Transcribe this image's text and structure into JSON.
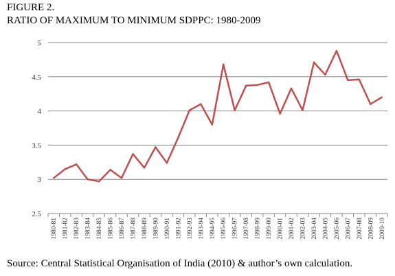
{
  "figure_label": "FIGURE 2.",
  "figure_title": "RATIO OF MAXIMUM TO MINIMUM SDPPC: 1980-2009",
  "source_note": "Source: Central Statistical Organisation of India (2010) & author’s own calculation.",
  "chart_data": {
    "type": "line",
    "title": "RATIO OF MAXIMUM TO MINIMUM SDPPC: 1980-2009",
    "xlabel": "",
    "ylabel": "",
    "ylim": [
      2.5,
      5
    ],
    "yticks": [
      "2.5",
      "3",
      "3.5",
      "4",
      "4.5",
      "5"
    ],
    "grid": "horizontal",
    "legend": "none",
    "line_color": "#c0504d",
    "categories": [
      "1980-81",
      "1981-82",
      "1982-83",
      "1983-84",
      "1984-85",
      "1985-86",
      "1986-87",
      "1987-88",
      "1988-89",
      "1989-90",
      "1990-91",
      "1991-92",
      "1992-93",
      "1993-94",
      "1994-95",
      "1995-96",
      "1996-97",
      "1997-98",
      "1998-99",
      "1999-00",
      "2000-01",
      "2001-02",
      "2002-03",
      "2003-04",
      "2004-05",
      "2005-06",
      "2006-07",
      "2007-08",
      "2008-09",
      "2009-10"
    ],
    "series": [
      {
        "values": [
          3.02,
          3.15,
          3.22,
          3.0,
          2.97,
          3.14,
          3.02,
          3.37,
          3.17,
          3.47,
          3.24,
          3.61,
          4.01,
          4.1,
          3.8,
          4.68,
          4.01,
          4.37,
          4.38,
          4.42,
          3.96,
          4.33,
          4.01,
          4.71,
          4.53,
          4.88,
          4.45,
          4.46,
          4.1,
          4.2
        ]
      }
    ]
  }
}
